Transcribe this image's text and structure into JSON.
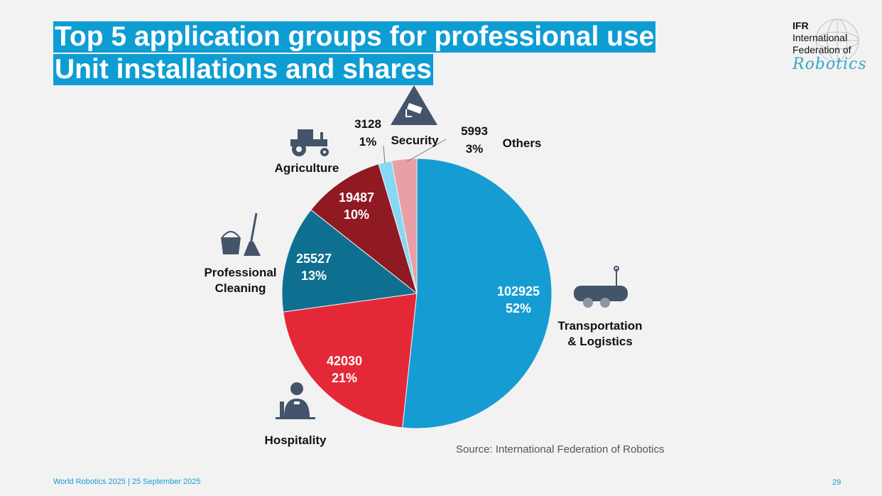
{
  "title_line1": "Top 5 application groups for professional use",
  "title_line2": "Unit installations and shares",
  "logo": {
    "line1": "IFR",
    "line2": "International",
    "line3": "Federation of",
    "line4": "Robotics"
  },
  "chart_data": {
    "type": "pie",
    "title": "Top 5 application groups for professional use - Unit installations and shares",
    "start": "12 o'clock, clockwise",
    "slices": [
      {
        "name": "Transportation & Logistics",
        "label_lines": [
          "Transportation",
          "& Logistics"
        ],
        "value": 102925,
        "value_label": "102925",
        "share": "52%",
        "color": "#159dd3"
      },
      {
        "name": "Hospitality",
        "label_lines": [
          "Hospitality"
        ],
        "value": 42030,
        "value_label": "42030",
        "share": "21%",
        "color": "#e52838"
      },
      {
        "name": "Professional Cleaning",
        "label_lines": [
          "Professional",
          "Cleaning"
        ],
        "value": 25527,
        "value_label": "25527",
        "share": "13%",
        "color": "#0f6f90"
      },
      {
        "name": "Agriculture",
        "label_lines": [
          "Agriculture"
        ],
        "value": 19487,
        "value_label": "19487",
        "share": "10%",
        "color": "#8f1a22"
      },
      {
        "name": "Security",
        "label_lines": [
          "Security"
        ],
        "value": 3128,
        "value_label": "3128",
        "share": "1%",
        "color": "#85d9f5"
      },
      {
        "name": "Others",
        "label_lines": [
          "Others"
        ],
        "value": 5993,
        "value_label": "5993",
        "share": "3%",
        "color": "#e99fa6"
      }
    ]
  },
  "source": "Source: International Federation of Robotics",
  "footer": "World Robotics 2025  | 25 September 2025",
  "page_number": "29"
}
